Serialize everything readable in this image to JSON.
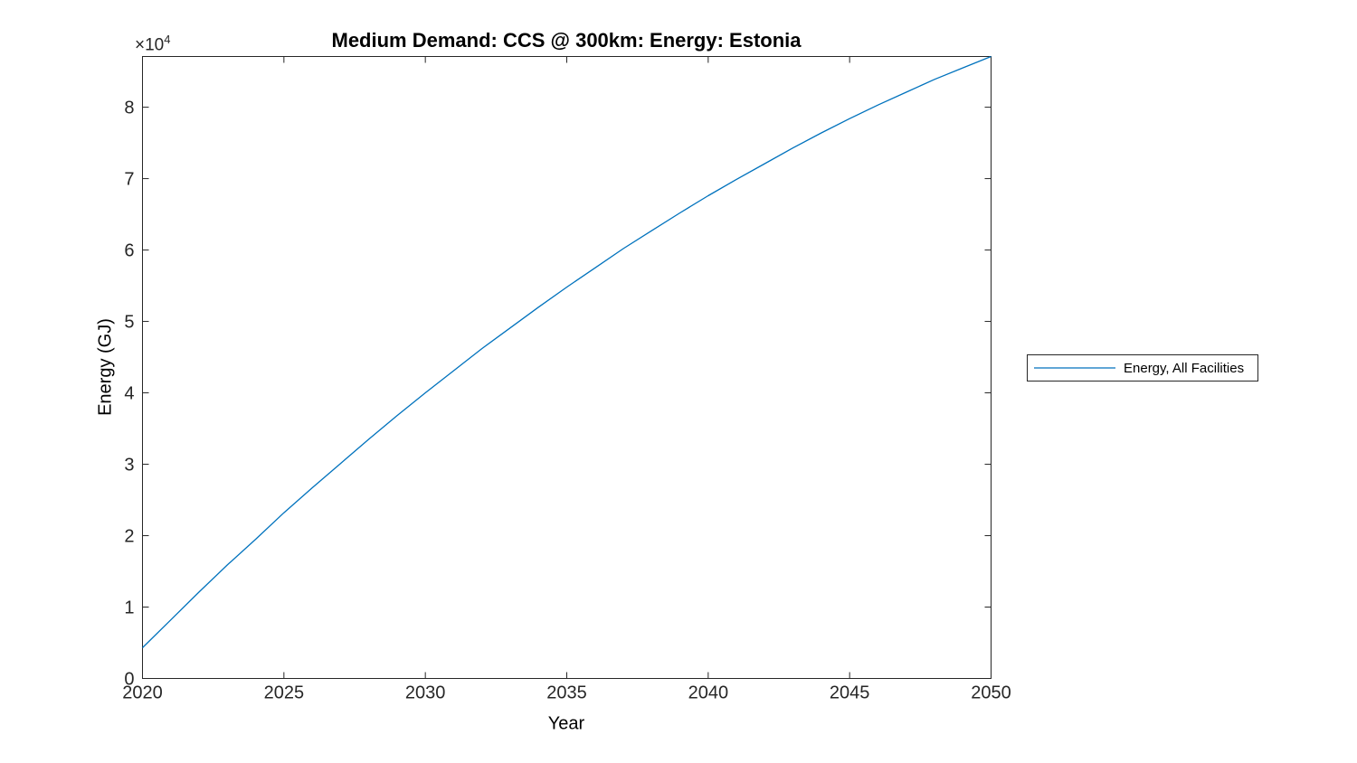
{
  "figure": {
    "offset": {
      "base": "×10",
      "exponent": "4"
    }
  },
  "colors": {
    "line": "#0072BD",
    "axis": "#262626",
    "tick_text": "#262626",
    "label_text": "#000000"
  },
  "chart_data": {
    "type": "line",
    "title": "Medium Demand: CCS @ 300km: Energy: Estonia",
    "xlabel": "Year",
    "ylabel": "Energy (GJ)",
    "xlim": [
      2020,
      2050
    ],
    "ylim": [
      0,
      87100
    ],
    "grid": false,
    "x_ticks": [
      2020,
      2025,
      2030,
      2035,
      2040,
      2045,
      2050
    ],
    "y_ticks": [
      0,
      10000,
      20000,
      30000,
      40000,
      50000,
      60000,
      70000,
      80000
    ],
    "y_tick_labels": [
      "0",
      "1",
      "2",
      "3",
      "4",
      "5",
      "6",
      "7",
      "8"
    ],
    "y_axis_multiplier": "×10^4",
    "legend": {
      "position": "right-outside",
      "entries": [
        {
          "label": "Energy, All Facilities",
          "color": "#0072BD"
        }
      ]
    },
    "series": [
      {
        "name": "Energy, All Facilities",
        "color": "#0072BD",
        "x": [
          2020,
          2021,
          2022,
          2023,
          2024,
          2025,
          2026,
          2027,
          2028,
          2029,
          2030,
          2031,
          2032,
          2033,
          2034,
          2035,
          2036,
          2037,
          2038,
          2039,
          2040,
          2041,
          2042,
          2043,
          2044,
          2045,
          2046,
          2047,
          2048,
          2049,
          2050
        ],
        "values": [
          4300,
          8200,
          12100,
          15900,
          19500,
          23200,
          26700,
          30100,
          33500,
          36800,
          40000,
          43100,
          46200,
          49100,
          52000,
          54800,
          57500,
          60200,
          62700,
          65200,
          67600,
          69900,
          72100,
          74300,
          76400,
          78400,
          80300,
          82100,
          83900,
          85500,
          87100
        ]
      }
    ]
  }
}
